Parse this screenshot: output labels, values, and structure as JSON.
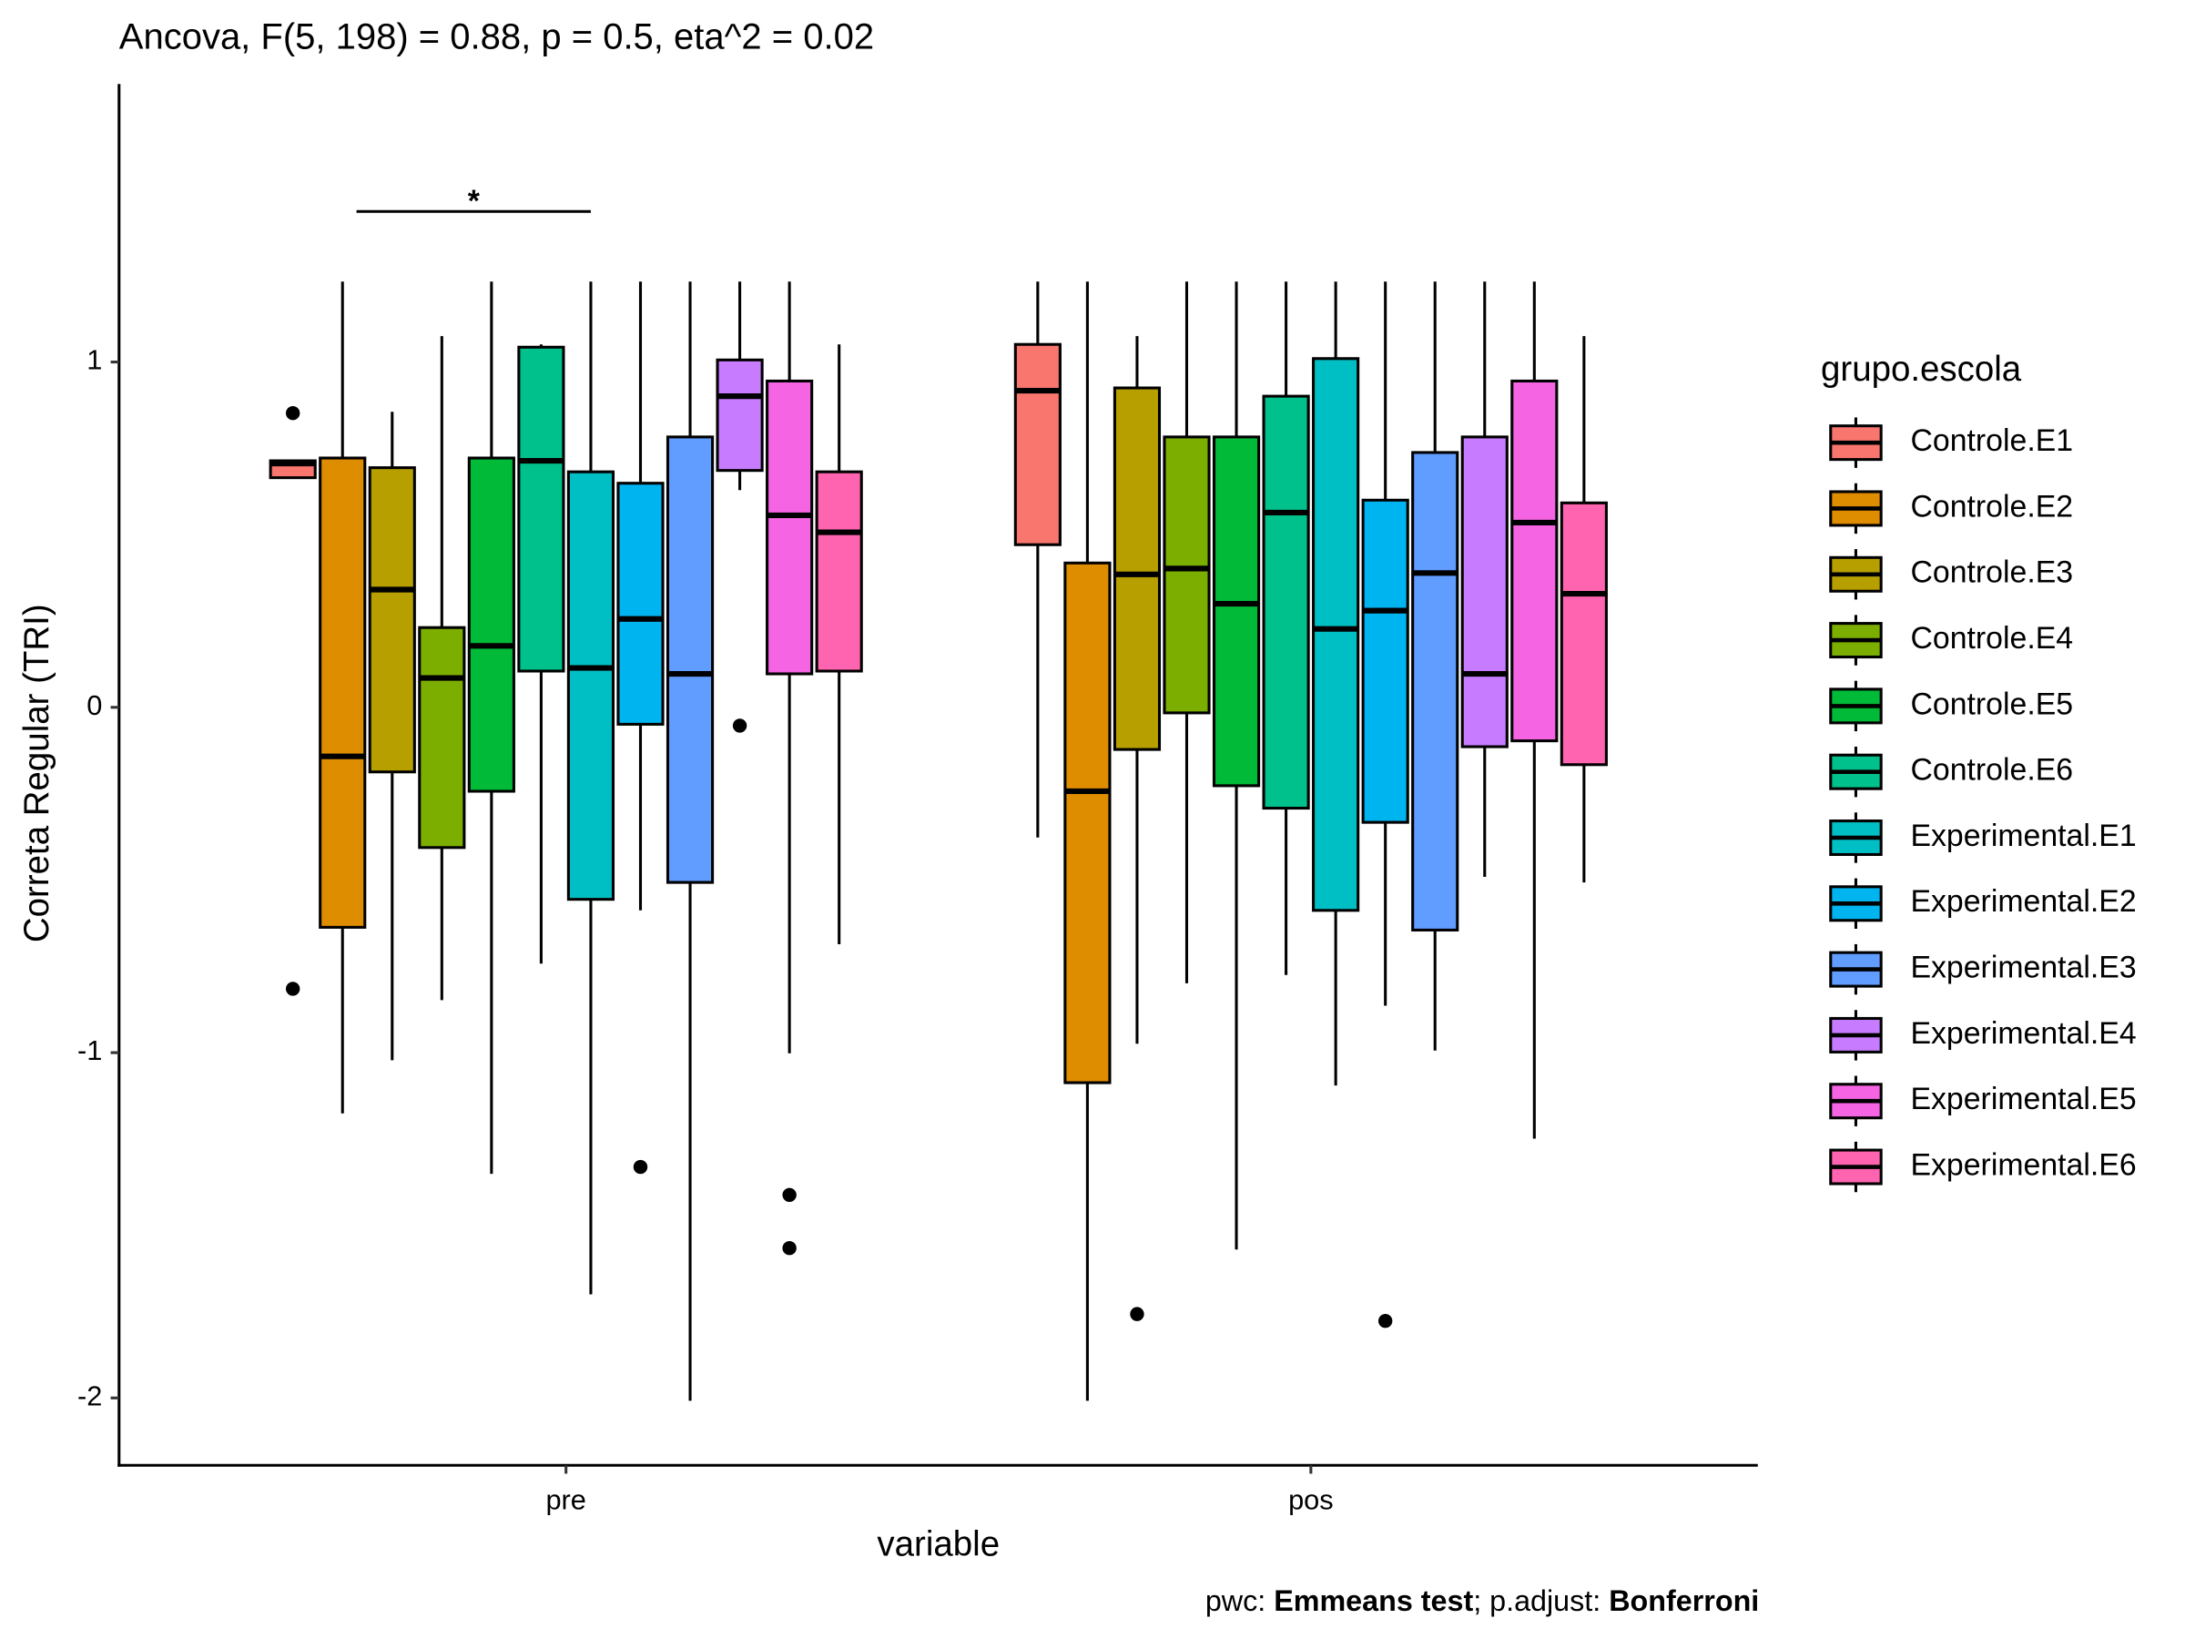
{
  "chart_data": {
    "type": "boxplot",
    "title": "Ancova, F(5, 198) = 0.88, p = 0.5, eta^2 = 0.02",
    "x_label": "variable",
    "y_label": "Correta Regular (TRI)",
    "legend_title": "grupo.escola",
    "legend_position": "right",
    "caption": [
      "pwc: ",
      "Emmeans test",
      "; p.adjust: ",
      "Bonferroni"
    ],
    "categories": [
      "pre",
      "pos"
    ],
    "ylim": [
      -2.195,
      1.805
    ],
    "yticks": [
      -2,
      -1,
      0,
      1
    ],
    "grid": false,
    "annotations": [
      {
        "label": "*",
        "y": 1.436,
        "group1": "Controle.E2",
        "group2": "Experimental.E1"
      }
    ],
    "series": [
      {
        "name": "Controle.E1",
        "color": "#F8766D",
        "values": [
          {
            "min": 0.665,
            "q1": 0.665,
            "median": 0.706,
            "q3": 0.714,
            "max": 0.714,
            "outliers": [
              0.852,
              -0.815
            ]
          },
          {
            "min": -0.377,
            "q1": 0.471,
            "median": 0.917,
            "q3": 1.051,
            "max": 1.233,
            "outliers": []
          }
        ]
      },
      {
        "name": "Controle.E2",
        "color": "#DE8C00",
        "values": [
          {
            "min": -1.176,
            "q1": -0.637,
            "median": -0.142,
            "q3": 0.722,
            "max": 1.233,
            "outliers": []
          },
          {
            "min": -2.008,
            "q1": -1.087,
            "median": -0.243,
            "q3": 0.418,
            "max": 1.233,
            "outliers": []
          }
        ]
      },
      {
        "name": "Controle.E3",
        "color": "#B79F00",
        "values": [
          {
            "min": -1.022,
            "q1": -0.187,
            "median": 0.341,
            "q3": 0.694,
            "max": 0.856,
            "outliers": []
          },
          {
            "min": -0.974,
            "q1": -0.122,
            "median": 0.385,
            "q3": 0.925,
            "max": 1.075,
            "outliers": [
              -1.757
            ]
          }
        ]
      },
      {
        "name": "Controle.E4",
        "color": "#7CAE00",
        "values": [
          {
            "min": -0.848,
            "q1": -0.406,
            "median": 0.085,
            "q3": 0.231,
            "max": 1.075,
            "outliers": []
          },
          {
            "min": -0.799,
            "q1": -0.016,
            "median": 0.402,
            "q3": 0.783,
            "max": 1.233,
            "outliers": []
          }
        ]
      },
      {
        "name": "Controle.E5",
        "color": "#00BA38",
        "values": [
          {
            "min": -1.351,
            "q1": -0.243,
            "median": 0.178,
            "q3": 0.722,
            "max": 1.233,
            "outliers": []
          },
          {
            "min": -1.57,
            "q1": -0.227,
            "median": 0.3,
            "q3": 0.783,
            "max": 1.233,
            "outliers": []
          }
        ]
      },
      {
        "name": "Controle.E6",
        "color": "#00C08B",
        "values": [
          {
            "min": -0.742,
            "q1": 0.105,
            "median": 0.714,
            "q3": 1.043,
            "max": 1.051,
            "outliers": []
          },
          {
            "min": -0.775,
            "q1": -0.292,
            "median": 0.564,
            "q3": 0.901,
            "max": 1.233,
            "outliers": []
          }
        ]
      },
      {
        "name": "Experimental.E1",
        "color": "#00BFC4",
        "values": [
          {
            "min": -1.7,
            "q1": -0.556,
            "median": 0.114,
            "q3": 0.682,
            "max": 1.233,
            "outliers": []
          },
          {
            "min": -1.095,
            "q1": -0.588,
            "median": 0.227,
            "q3": 1.01,
            "max": 1.233,
            "outliers": []
          }
        ]
      },
      {
        "name": "Experimental.E2",
        "color": "#00B4F0",
        "values": [
          {
            "min": -0.588,
            "q1": -0.049,
            "median": 0.256,
            "q3": 0.649,
            "max": 1.233,
            "outliers": [
              -1.331
            ]
          },
          {
            "min": -0.864,
            "q1": -0.333,
            "median": 0.28,
            "q3": 0.6,
            "max": 1.233,
            "outliers": [
              -1.777
            ]
          }
        ]
      },
      {
        "name": "Experimental.E3",
        "color": "#619CFF",
        "values": [
          {
            "min": -2.008,
            "q1": -0.507,
            "median": 0.097,
            "q3": 0.783,
            "max": 1.233,
            "outliers": []
          },
          {
            "min": -0.994,
            "q1": -0.645,
            "median": 0.389,
            "q3": 0.738,
            "max": 1.233,
            "outliers": []
          }
        ]
      },
      {
        "name": "Experimental.E4",
        "color": "#C77CFF",
        "values": [
          {
            "min": 0.629,
            "q1": 0.686,
            "median": 0.901,
            "q3": 1.006,
            "max": 1.233,
            "outliers": [
              -0.053
            ]
          },
          {
            "min": -0.491,
            "q1": -0.114,
            "median": 0.097,
            "q3": 0.783,
            "max": 1.233,
            "outliers": []
          }
        ]
      },
      {
        "name": "Experimental.E5",
        "color": "#F564E3",
        "values": [
          {
            "min": -1.002,
            "q1": 0.097,
            "median": 0.556,
            "q3": 0.945,
            "max": 1.233,
            "outliers": [
              -1.412,
              -1.566
            ]
          },
          {
            "min": -1.249,
            "q1": -0.097,
            "median": 0.535,
            "q3": 0.945,
            "max": 1.233,
            "outliers": []
          }
        ]
      },
      {
        "name": "Experimental.E6",
        "color": "#FF64B0",
        "values": [
          {
            "min": -0.686,
            "q1": 0.105,
            "median": 0.507,
            "q3": 0.682,
            "max": 1.051,
            "outliers": []
          },
          {
            "min": -0.507,
            "q1": -0.166,
            "median": 0.329,
            "q3": 0.592,
            "max": 1.075,
            "outliers": []
          }
        ]
      }
    ]
  }
}
